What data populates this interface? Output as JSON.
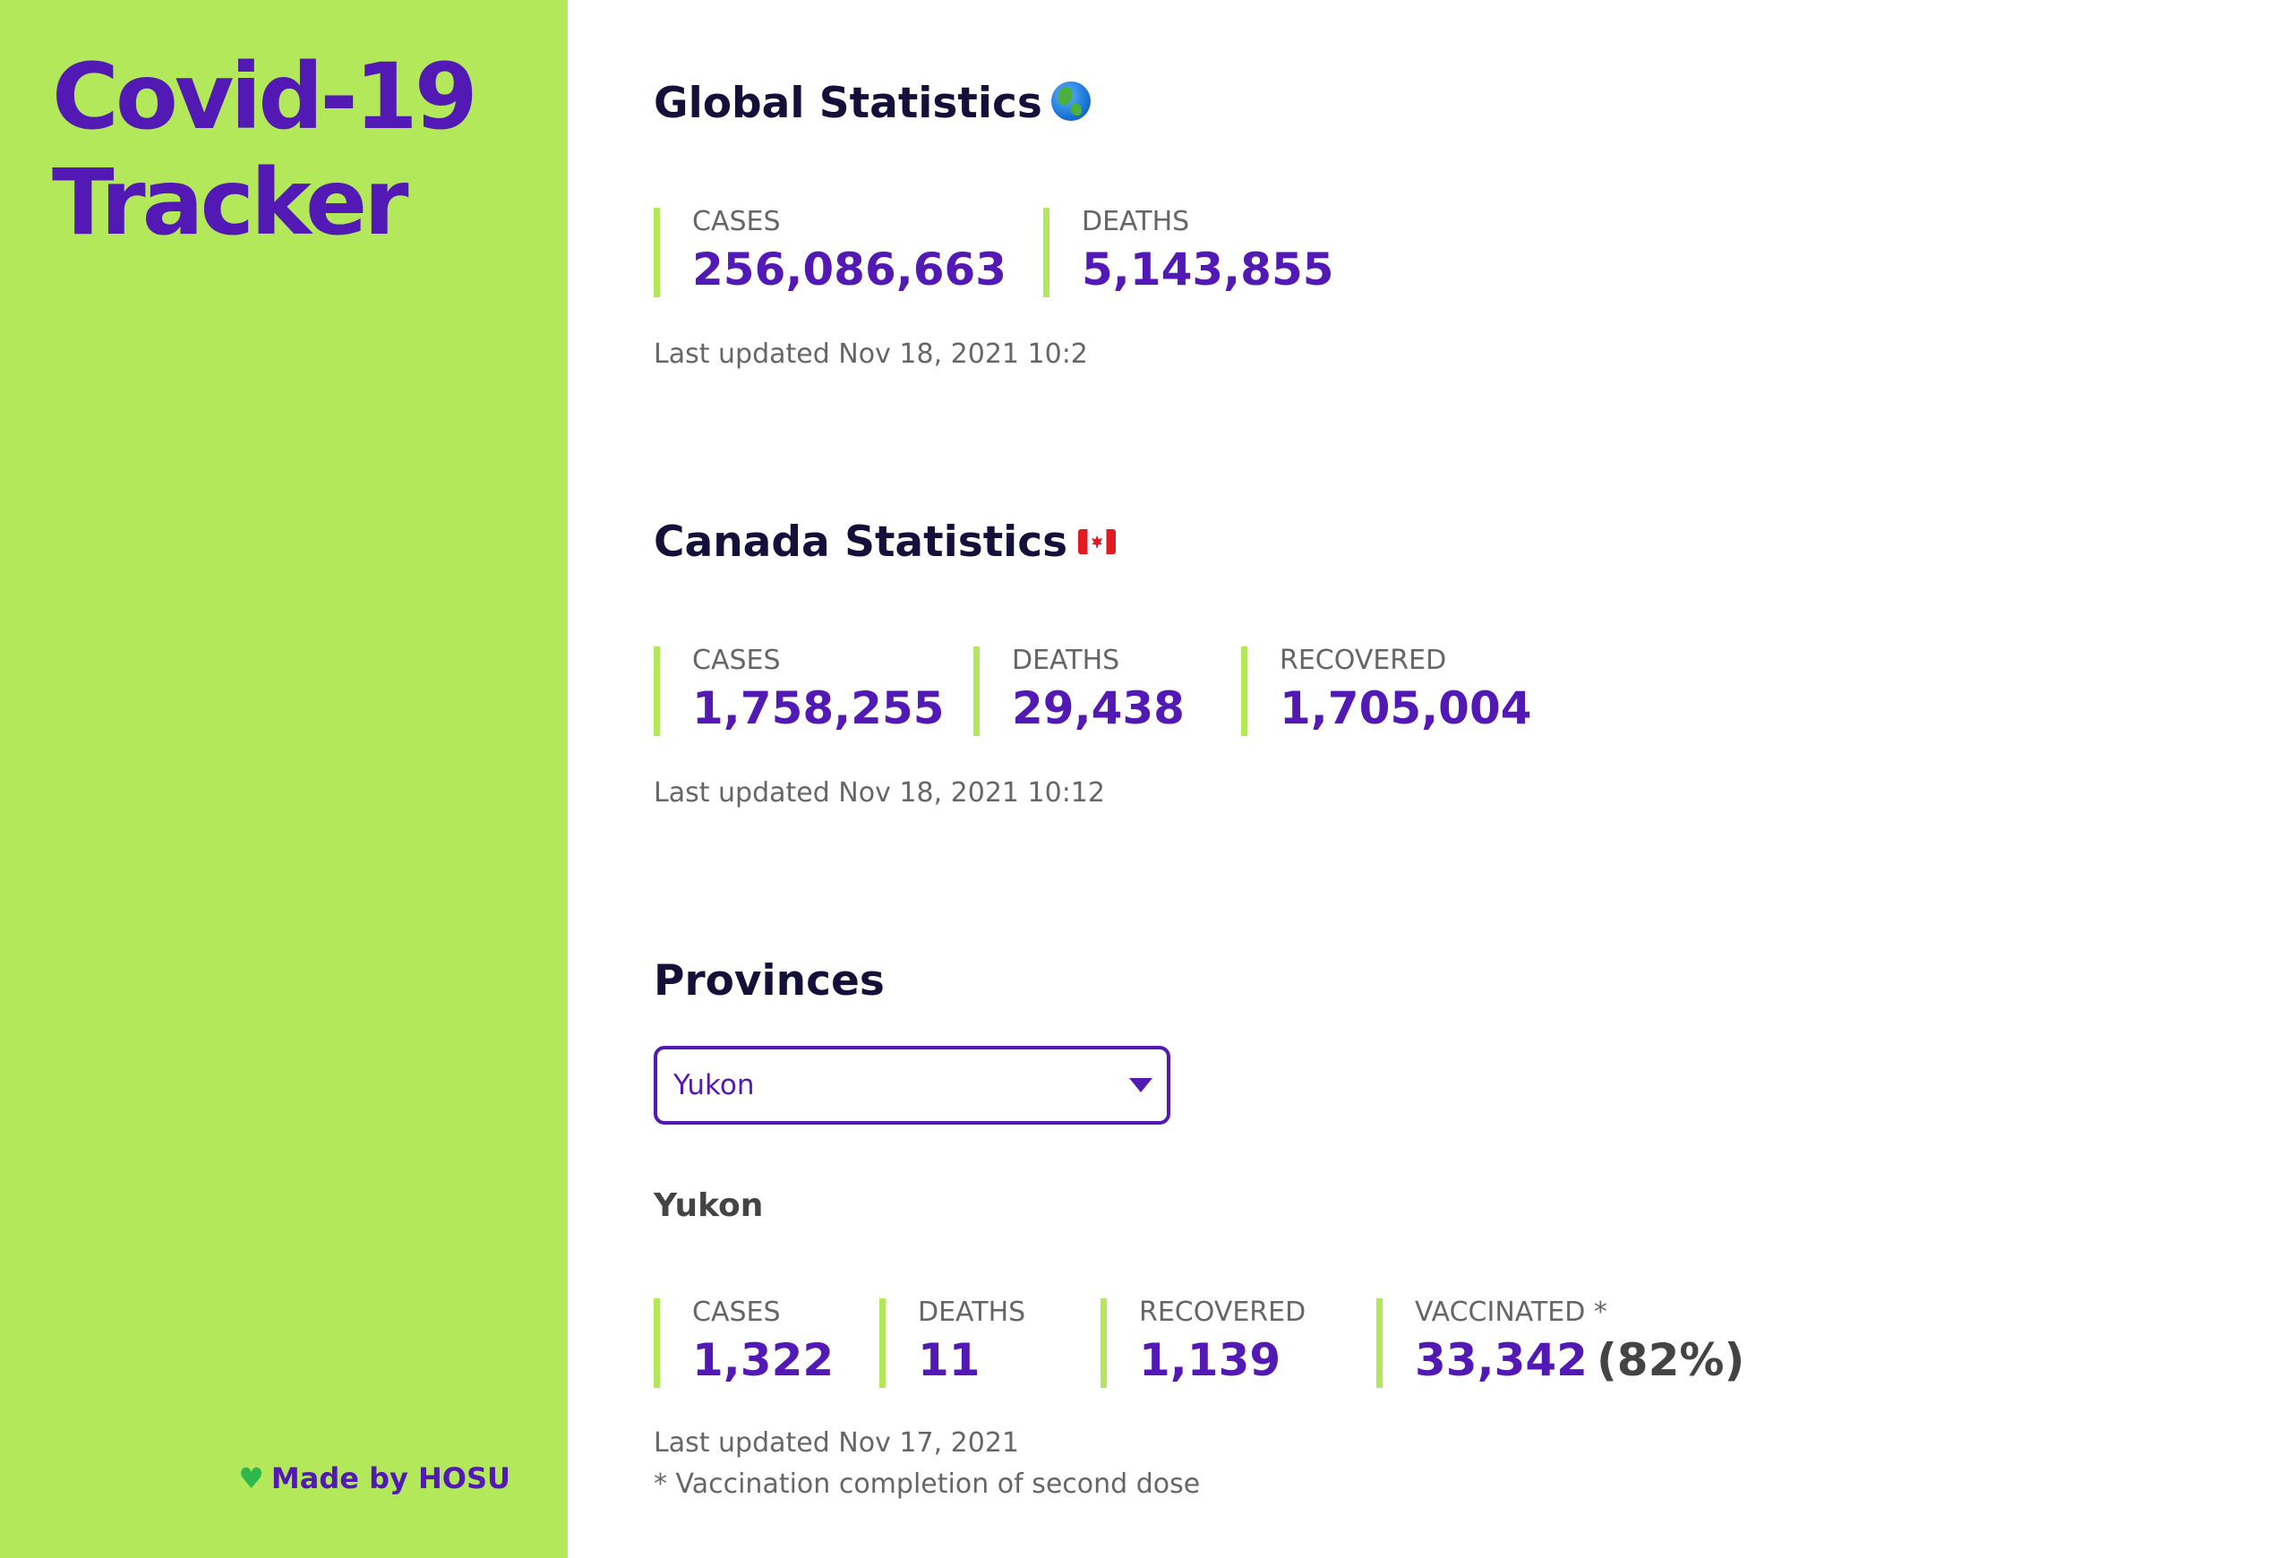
{
  "sidebar": {
    "title_line1": "Covid-19",
    "title_line2": "Tracker",
    "credit_icon": "green-heart-icon",
    "credit_text": "Made by HOSU"
  },
  "global": {
    "title": "Global Statistics",
    "title_icon": "globe-icon",
    "stats": [
      {
        "label": "CASES",
        "value": "256,086,663"
      },
      {
        "label": "DEATHS",
        "value": "5,143,855"
      }
    ],
    "updated": "Last updated Nov 18, 2021 10:2"
  },
  "canada": {
    "title": "Canada Statistics",
    "title_icon": "canada-flag-icon",
    "stats": [
      {
        "label": "CASES",
        "value": "1,758,255"
      },
      {
        "label": "DEATHS",
        "value": "29,438"
      },
      {
        "label": "RECOVERED",
        "value": "1,705,004"
      }
    ],
    "updated": "Last updated Nov 18, 2021 10:12"
  },
  "provinces": {
    "title": "Provinces",
    "selected": "Yukon",
    "province_name": "Yukon",
    "stats": [
      {
        "label": "CASES",
        "value": "1,322"
      },
      {
        "label": "DEATHS",
        "value": "11"
      },
      {
        "label": "RECOVERED",
        "value": "1,139"
      },
      {
        "label": "VACCINATED *",
        "value": "33,342",
        "pct": "(82%)"
      }
    ],
    "updated": "Last updated Nov 17, 2021",
    "footnote": "* Vaccination completion of second dose"
  },
  "colors": {
    "sidebar_bg": "#b3e85a",
    "accent_purple": "#5319b4",
    "heading_dark": "#15103a",
    "muted_text": "#666666"
  }
}
